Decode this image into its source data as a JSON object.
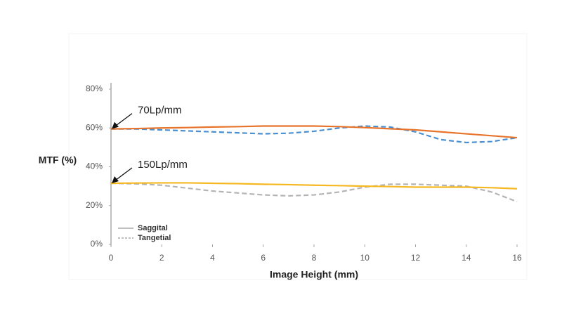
{
  "chart_data": {
    "type": "line",
    "x_label": "Image Height (mm)",
    "y_label": "MTF (%)",
    "xlim": [
      0,
      16
    ],
    "xticks": [
      0,
      2,
      4,
      6,
      8,
      10,
      12,
      14,
      16
    ],
    "ylim": [
      0,
      80
    ],
    "yticks": [
      {
        "value": 0,
        "label": "0%"
      },
      {
        "value": 20,
        "label": "20%"
      },
      {
        "value": 40,
        "label": "40%"
      },
      {
        "value": 60,
        "label": "60%"
      },
      {
        "value": 80,
        "label": "80%"
      }
    ],
    "grid": false,
    "x": [
      0,
      1,
      2,
      3,
      4,
      5,
      6,
      7,
      8,
      9,
      10,
      11,
      12,
      13,
      14,
      15,
      16
    ],
    "series": [
      {
        "color": "#4a8fd0",
        "dashed": true,
        "values": [
          59.5,
          59.5,
          59,
          58.5,
          58,
          57.5,
          57,
          57.3,
          58.3,
          60,
          61,
          60.5,
          58,
          54,
          52.5,
          53,
          55
        ]
      },
      {
        "color": "#e8732a",
        "dashed": false,
        "values": [
          59.5,
          59.7,
          60,
          60.2,
          60.5,
          60.7,
          61,
          61,
          61,
          60.7,
          60.2,
          59.6,
          59,
          58,
          57,
          56,
          55
        ]
      },
      {
        "color": "#b4b4b4",
        "dashed": true,
        "values": [
          31.5,
          31.2,
          30.5,
          29,
          27.5,
          26.5,
          25.5,
          25,
          25.5,
          27,
          29.5,
          31,
          31,
          30.5,
          30,
          27,
          22
        ]
      },
      {
        "color": "#f5b820",
        "dashed": false,
        "values": [
          31.5,
          31.6,
          31.7,
          31.7,
          31.5,
          31.3,
          31,
          30.8,
          30.5,
          30.3,
          30,
          29.8,
          29.5,
          29.5,
          29.5,
          29.2,
          28.7
        ]
      }
    ],
    "legend": [
      {
        "label": "Saggital",
        "dashed": false,
        "color": "#999999"
      },
      {
        "label": "Tangetial",
        "dashed": true,
        "color": "#999999"
      }
    ],
    "annotations": [
      {
        "text": "70Lp/mm",
        "x": 0,
        "y": 59.5
      },
      {
        "text": "150Lp/mm",
        "x": 0,
        "y": 31.5
      }
    ]
  }
}
